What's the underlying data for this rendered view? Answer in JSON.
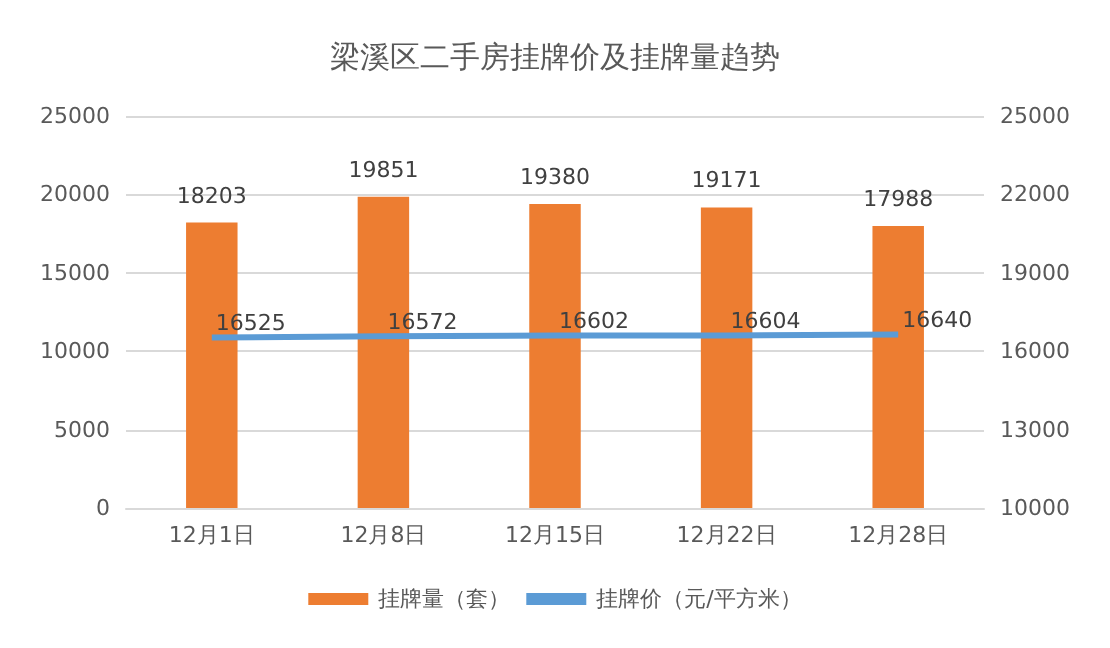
{
  "chart_data": {
    "type": "bar",
    "title": "梁溪区二手房挂牌价及挂牌量趋势",
    "categories": [
      "12月1日",
      "12月8日",
      "12月15日",
      "12月22日",
      "12月28日"
    ],
    "series": [
      {
        "name": "挂牌量（套）",
        "color": "#ed7d31",
        "values": [
          18203,
          19851,
          19380,
          19171,
          17988
        ]
      },
      {
        "name": "挂牌价（元/平方米）",
        "type": "line",
        "axis": "y2",
        "color": "#5b9bd5",
        "values": [
          16525,
          16572,
          16602,
          16604,
          16640
        ]
      }
    ],
    "ylim": [
      0,
      25000
    ],
    "yticks": [
      0,
      5000,
      10000,
      15000,
      20000,
      25000
    ],
    "y2lim": [
      10000,
      25000
    ],
    "y2ticks": [
      10000,
      13000,
      16000,
      19000,
      22000,
      25000
    ],
    "grid": "y",
    "legend": "bottom",
    "data_labels": true,
    "marker": "none",
    "line_style": "solid"
  }
}
